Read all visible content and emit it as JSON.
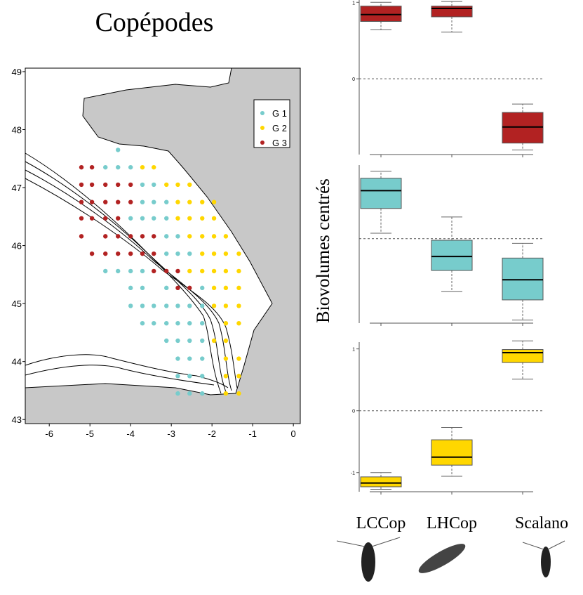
{
  "chart_data": [
    {
      "type": "scatter",
      "title": "Copépodes",
      "xlim": [
        -6.59,
        0.17
      ],
      "ylim": [
        42.93,
        49.06
      ],
      "xticks": [
        -6,
        -5,
        -4,
        -3,
        -2,
        -1,
        0
      ],
      "yticks": [
        43,
        44,
        45,
        46,
        47,
        48,
        49
      ],
      "legend": "upper right",
      "series": [
        {
          "name": "G 1",
          "color": "#77cccc",
          "x": [
            -4.31,
            -4.62,
            -4.31,
            -4.0,
            -3.71,
            -3.43,
            -3.71,
            -3.43,
            -3.12,
            -4.0,
            -3.71,
            -3.43,
            -3.12,
            -3.12,
            -2.84,
            -3.12,
            -2.84,
            -2.55,
            -4.62,
            -4.31,
            -4.0,
            -3.71,
            -4.0,
            -3.71,
            -3.12,
            -2.24,
            -4.0,
            -3.71,
            -3.43,
            -3.12,
            -2.84,
            -2.55,
            -2.24,
            -3.71,
            -3.43,
            -3.12,
            -2.84,
            -2.55,
            -2.24,
            -3.12,
            -2.84,
            -2.55,
            -2.24,
            -2.84,
            -2.55,
            -2.24,
            -2.84,
            -2.55,
            -2.24,
            -2.84,
            -2.55,
            -2.24
          ],
          "y": [
            47.65,
            47.35,
            47.35,
            47.35,
            47.05,
            47.05,
            46.75,
            46.75,
            46.75,
            46.47,
            46.47,
            46.47,
            46.47,
            46.16,
            46.16,
            45.86,
            45.86,
            45.86,
            45.56,
            45.56,
            45.56,
            45.56,
            45.27,
            45.27,
            45.27,
            45.27,
            44.96,
            44.96,
            44.96,
            44.96,
            44.96,
            44.96,
            44.96,
            44.66,
            44.66,
            44.66,
            44.66,
            44.66,
            44.66,
            44.36,
            44.36,
            44.36,
            44.36,
            44.05,
            44.05,
            44.05,
            43.75,
            43.75,
            43.75,
            43.45,
            43.45,
            43.45
          ]
        },
        {
          "name": "G 2",
          "color": "#ffd700",
          "x": [
            -3.71,
            -3.43,
            -3.12,
            -2.84,
            -2.55,
            -2.84,
            -2.55,
            -2.24,
            -1.95,
            -2.84,
            -2.55,
            -2.24,
            -1.95,
            -2.55,
            -2.24,
            -1.95,
            -1.66,
            -2.24,
            -1.95,
            -1.66,
            -1.34,
            -2.55,
            -2.24,
            -1.95,
            -1.66,
            -1.34,
            -1.95,
            -1.66,
            -1.34,
            -1.95,
            -1.66,
            -1.34,
            -1.66,
            -1.34,
            -1.95,
            -1.66,
            -1.66,
            -1.34,
            -1.66,
            -1.34,
            -1.66,
            -1.34
          ],
          "y": [
            47.35,
            47.35,
            47.05,
            47.05,
            47.05,
            46.75,
            46.75,
            46.75,
            46.75,
            46.47,
            46.47,
            46.47,
            46.47,
            46.16,
            46.16,
            46.16,
            46.16,
            45.86,
            45.86,
            45.86,
            45.86,
            45.56,
            45.56,
            45.56,
            45.56,
            45.56,
            45.27,
            45.27,
            45.27,
            44.96,
            44.96,
            44.96,
            44.66,
            44.66,
            44.36,
            44.36,
            44.05,
            44.05,
            43.75,
            43.75,
            43.45,
            43.45
          ]
        },
        {
          "name": "G 3",
          "color": "#b22222",
          "x": [
            -5.21,
            -4.95,
            -5.21,
            -4.95,
            -4.62,
            -4.31,
            -4.0,
            -5.21,
            -4.95,
            -4.62,
            -4.31,
            -4.0,
            -5.21,
            -4.95,
            -4.62,
            -4.31,
            -5.21,
            -4.62,
            -4.31,
            -4.0,
            -3.71,
            -3.43,
            -4.95,
            -4.62,
            -4.31,
            -4.0,
            -3.71,
            -3.43,
            -3.43,
            -3.12,
            -2.84,
            -2.84,
            -2.55
          ],
          "y": [
            47.35,
            47.35,
            47.05,
            47.05,
            47.05,
            47.05,
            47.05,
            46.75,
            46.75,
            46.75,
            46.75,
            46.75,
            46.47,
            46.47,
            46.47,
            46.47,
            46.16,
            46.16,
            46.16,
            46.16,
            46.16,
            46.16,
            45.86,
            45.86,
            45.86,
            45.86,
            45.86,
            45.86,
            45.56,
            45.56,
            45.56,
            45.27,
            45.27
          ]
        }
      ]
    },
    {
      "type": "box",
      "y_label": "Biovolumes centrés",
      "color": "#b22222",
      "ylim": [
        -0.99,
        1.03
      ],
      "yticks": [
        0,
        1
      ],
      "refline": 0,
      "boxes": [
        {
          "whisker_low": 0.64,
          "q1": 0.75,
          "median": 0.84,
          "q3": 0.95,
          "whisker_high": 1.0
        },
        {
          "whisker_low": 0.61,
          "q1": 0.81,
          "median": 0.92,
          "q3": 0.95,
          "whisker_high": 1.01
        },
        {
          "whisker_low": -0.93,
          "q1": -0.84,
          "median": -0.63,
          "q3": -0.44,
          "whisker_high": -0.33
        }
      ]
    },
    {
      "type": "box",
      "color": "#77cccc",
      "ylim": [
        -1.09,
        0.95
      ],
      "refline": 0,
      "boxes": [
        {
          "whisker_low": 0.07,
          "q1": 0.39,
          "median": 0.62,
          "q3": 0.78,
          "whisker_high": 0.87
        },
        {
          "whisker_low": -0.68,
          "q1": -0.41,
          "median": -0.23,
          "q3": -0.02,
          "whisker_high": 0.28
        },
        {
          "whisker_low": -1.05,
          "q1": -0.79,
          "median": -0.53,
          "q3": -0.25,
          "whisker_high": -0.06
        }
      ]
    },
    {
      "type": "box",
      "color": "#ffd700",
      "ylim": [
        -1.31,
        1.11
      ],
      "yticks": [
        -1,
        0,
        1
      ],
      "refline": 0,
      "categories": [
        "LCCop",
        "LHCop",
        "Scalano"
      ],
      "boxes": [
        {
          "whisker_low": -1.27,
          "q1": -1.23,
          "median": -1.17,
          "q3": -1.07,
          "whisker_high": -1.0
        },
        {
          "whisker_low": -1.06,
          "q1": -0.88,
          "median": -0.75,
          "q3": -0.47,
          "whisker_high": -0.27
        },
        {
          "whisker_low": 0.51,
          "q1": 0.78,
          "median": 0.94,
          "q3": 0.99,
          "whisker_high": 1.13
        }
      ]
    }
  ]
}
